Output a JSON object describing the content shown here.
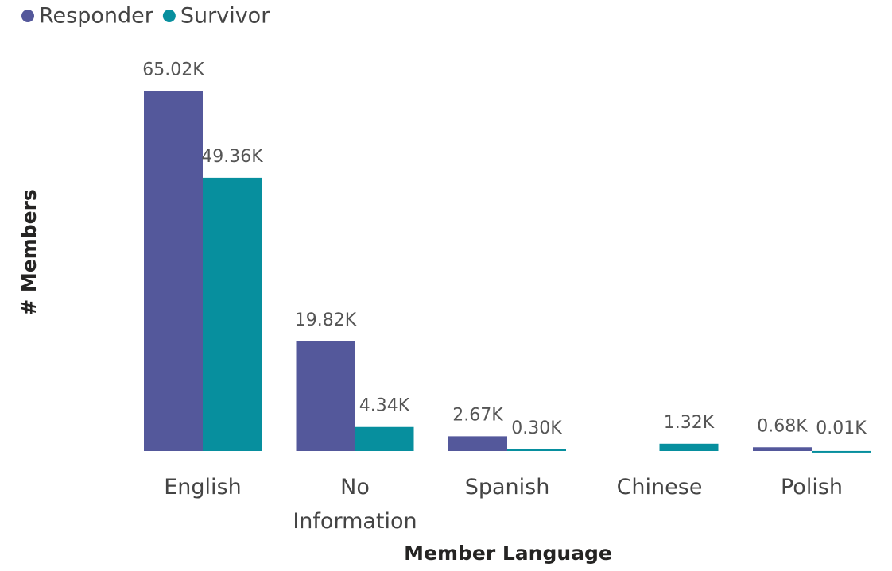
{
  "chart_data": {
    "type": "bar",
    "x_label": "Member Language",
    "y_label": "# Members",
    "categories": [
      "English",
      "No Information",
      "Spanish",
      "Chinese",
      "Polish"
    ],
    "series": [
      {
        "name": "Responder",
        "color": "#54589b",
        "values": [
          65020,
          19820,
          2670,
          null,
          680
        ],
        "value_labels": [
          "65.02K",
          "19.82K",
          "2.67K",
          null,
          "0.68K"
        ]
      },
      {
        "name": "Survivor",
        "color": "#078f9e",
        "values": [
          49360,
          4340,
          300,
          1320,
          10
        ],
        "value_labels": [
          "49.36K",
          "4.34K",
          "0.30K",
          "1.32K",
          "0.01K"
        ]
      }
    ],
    "ylim": [
      0,
      70000
    ],
    "legend": "top-left"
  }
}
